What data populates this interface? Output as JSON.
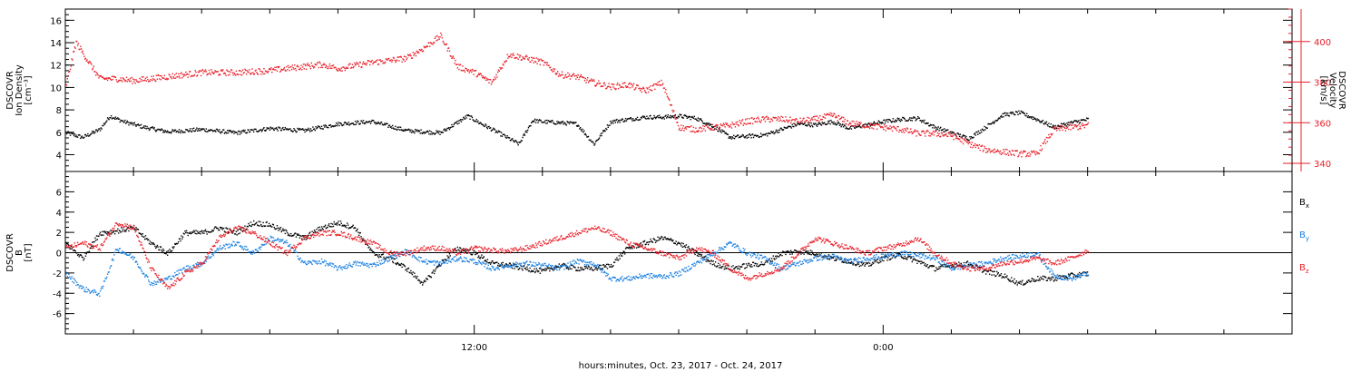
{
  "footer_label": "hours:minutes, Oct. 23, 2017 - Oct. 24, 2017",
  "time_ticks": [
    "12:00",
    "0:00"
  ],
  "colors": {
    "axis": "#000000",
    "red": "#e8202a",
    "blue": "#1a80e0",
    "black": "#000000"
  },
  "chart_data": [
    {
      "type": "scatter",
      "panel": "top",
      "ylabel_lines": [
        "DSCOVR",
        "Ion Density",
        "[cm⁻³]"
      ],
      "y2label_lines": [
        "DSCOVR",
        "Velocity",
        "[km/s]"
      ],
      "ylim": [
        2.5,
        17
      ],
      "yticks": [
        "4",
        "6",
        "8",
        "10",
        "12",
        "14",
        "16"
      ],
      "y2lim": [
        336,
        416
      ],
      "y2ticks": [
        "340",
        "360",
        "380",
        "400"
      ],
      "xlim_hours": [
        0,
        36
      ],
      "x_tick_hours": [
        12,
        24
      ],
      "series": [
        {
          "axis": "left",
          "color": "black",
          "x": [
            0,
            0.5,
            1,
            1.3,
            1.7,
            2.3,
            3,
            4,
            5,
            6,
            7,
            8,
            9,
            10,
            11,
            11.8,
            12.2,
            12.7,
            13.3,
            13.7,
            14,
            14.5,
            15,
            15.5,
            16,
            16.5,
            17,
            17.5,
            18,
            18.5,
            19,
            19.5,
            20,
            20.5,
            21,
            21.5,
            22,
            22.5,
            23,
            23.5,
            24,
            24.5,
            25,
            25.5,
            26,
            26.5,
            27,
            27.5,
            28,
            28.5,
            29,
            29.5,
            30
          ],
          "y": [
            6.0,
            5.6,
            6.3,
            7.5,
            7.0,
            6.5,
            6.1,
            6.3,
            6.0,
            6.4,
            6.2,
            6.8,
            7.0,
            6.2,
            6.0,
            7.5,
            6.8,
            6.0,
            5.0,
            7.1,
            7.0,
            6.9,
            6.8,
            5.0,
            7.0,
            7.2,
            7.4,
            7.4,
            7.5,
            7.3,
            6.6,
            5.6,
            5.7,
            5.8,
            6.3,
            6.8,
            6.7,
            7.0,
            6.4,
            6.7,
            7.0,
            7.2,
            7.3,
            6.5,
            6.0,
            5.5,
            6.5,
            7.6,
            7.8,
            7.2,
            6.5,
            6.9,
            7.2
          ]
        },
        {
          "axis": "right",
          "color": "red",
          "x": [
            0,
            0.3,
            0.6,
            1,
            1.5,
            2,
            3,
            4,
            5,
            6,
            7,
            7.5,
            8,
            9,
            10,
            10.5,
            11,
            11.5,
            12,
            12.5,
            13,
            13.5,
            14,
            14.5,
            15,
            15.5,
            16,
            16.5,
            17,
            17.5,
            18,
            18.5,
            19,
            19.5,
            20,
            20.5,
            21,
            21.5,
            22,
            22.5,
            23,
            23.5,
            24,
            24.5,
            25,
            25.5,
            26,
            26.5,
            27,
            27.5,
            28,
            28.5,
            29,
            29.5,
            30
          ],
          "y": [
            378,
            400,
            392,
            382,
            382,
            381,
            383,
            385,
            385,
            386,
            388,
            389,
            387,
            390,
            392,
            397,
            403,
            388,
            385,
            380,
            394,
            392,
            390,
            384,
            383,
            380,
            378,
            379,
            376,
            380,
            358,
            357,
            358,
            359,
            361,
            362,
            362,
            361,
            362,
            364,
            360,
            359,
            358,
            357,
            355,
            355,
            354,
            350,
            347,
            346,
            345,
            345,
            357,
            358,
            359
          ]
        }
      ]
    },
    {
      "type": "scatter",
      "panel": "bottom",
      "ylabel_lines": [
        "DSCOVR",
        "B",
        "[nT]"
      ],
      "ylim": [
        -8,
        8
      ],
      "yticks": [
        "-6",
        "-4",
        "-2",
        "0",
        "2",
        "4",
        "6"
      ],
      "xlim_hours": [
        0,
        36
      ],
      "x_tick_hours": [
        12,
        24
      ],
      "legend": [
        "Bx",
        "By",
        "Bz"
      ],
      "series": [
        {
          "name": "Bx",
          "color": "black",
          "x": [
            0,
            0.5,
            1,
            1.5,
            2,
            2.5,
            3,
            3.5,
            4,
            4.5,
            5,
            5.5,
            6,
            6.5,
            7,
            7.5,
            8,
            8.5,
            9,
            9.5,
            10,
            10.5,
            11,
            11.5,
            12,
            12.5,
            13,
            13.5,
            14,
            14.5,
            15,
            15.5,
            16,
            16.5,
            17,
            17.5,
            18,
            18.5,
            19,
            19.5,
            20,
            20.5,
            21,
            21.5,
            22,
            22.5,
            23,
            23.5,
            24,
            24.5,
            25,
            25.5,
            26,
            26.5,
            27,
            27.5,
            28,
            28.5,
            29,
            29.5,
            30
          ],
          "y": [
            1.0,
            -0.5,
            2.0,
            2.2,
            2.5,
            1.0,
            0.0,
            2.0,
            2.0,
            2.5,
            2.0,
            3.0,
            2.8,
            2.0,
            1.5,
            2.5,
            3.0,
            2.5,
            0.0,
            -0.5,
            -1.5,
            -3.0,
            -1.0,
            0.5,
            0.0,
            -1.0,
            -1.2,
            -1.5,
            -1.8,
            -1.2,
            -1.5,
            -1.5,
            -1.2,
            0.5,
            1.0,
            1.5,
            1.0,
            0.0,
            -1.0,
            -1.5,
            -1.2,
            -1.0,
            0.0,
            0.2,
            0.0,
            -0.5,
            -0.8,
            -1.2,
            -0.5,
            -0.2,
            -0.8,
            -1.5,
            -1.2,
            -1.0,
            -1.8,
            -2.2,
            -3.0,
            -2.5,
            -2.5,
            -2.2,
            -2.0
          ]
        },
        {
          "name": "By",
          "color": "blue",
          "x": [
            0,
            0.5,
            1,
            1.5,
            2,
            2.5,
            3,
            3.5,
            4,
            4.5,
            5,
            5.5,
            6,
            6.5,
            7,
            7.5,
            8,
            8.5,
            9,
            9.5,
            10,
            10.5,
            11,
            11.5,
            12,
            12.5,
            13,
            13.5,
            14,
            14.5,
            15,
            15.5,
            16,
            16.5,
            17,
            17.5,
            18,
            18.5,
            19,
            19.5,
            20,
            20.5,
            21,
            21.5,
            22,
            22.5,
            23,
            23.5,
            24,
            24.5,
            25,
            25.5,
            26,
            26.5,
            27,
            27.5,
            28,
            28.5,
            29,
            29.5,
            30
          ],
          "y": [
            -2.0,
            -3.5,
            -4.0,
            0.5,
            -0.5,
            -3.0,
            -2.5,
            -1.5,
            -1.0,
            0.5,
            1.0,
            0.0,
            1.5,
            1.0,
            -1.0,
            -0.8,
            -1.5,
            -1.0,
            -1.2,
            -0.5,
            0.2,
            -0.8,
            -1.0,
            -0.5,
            -0.8,
            -1.5,
            -1.2,
            -1.0,
            -1.2,
            -1.5,
            -0.8,
            -1.0,
            -2.5,
            -2.5,
            -2.2,
            -2.3,
            -2.0,
            -1.0,
            0.0,
            1.0,
            0.0,
            -0.5,
            -1.5,
            -1.0,
            -0.5,
            -0.3,
            -0.8,
            -0.5,
            -0.3,
            0.0,
            -0.2,
            -0.5,
            -1.5,
            -1.2,
            -1.0,
            -0.5,
            -0.3,
            0.0,
            -2.2,
            -2.5,
            -2.0
          ]
        },
        {
          "name": "Bz",
          "color": "red",
          "x": [
            0,
            0.5,
            1,
            1.5,
            2,
            2.5,
            3,
            3.5,
            4,
            4.5,
            5,
            5.5,
            6,
            6.5,
            7,
            7.5,
            8,
            8.5,
            9,
            9.5,
            10,
            10.5,
            11,
            11.5,
            12,
            12.5,
            13,
            13.5,
            14,
            14.5,
            15,
            15.5,
            16,
            16.5,
            17,
            17.5,
            18,
            18.5,
            19,
            19.5,
            20,
            20.5,
            21,
            21.5,
            22,
            22.5,
            23,
            23.5,
            24,
            24.5,
            25,
            25.5,
            26,
            26.5,
            27,
            27.5,
            28,
            28.5,
            29,
            29.5,
            30
          ],
          "y": [
            0.5,
            1.0,
            0.5,
            3.0,
            2.5,
            -1.5,
            -3.5,
            -2.0,
            -1.0,
            1.5,
            2.5,
            2.0,
            1.0,
            0.0,
            1.5,
            2.0,
            2.0,
            1.5,
            1.0,
            0.0,
            0.0,
            0.5,
            0.5,
            0.0,
            0.5,
            0.3,
            0.2,
            0.5,
            1.0,
            1.5,
            2.0,
            2.5,
            2.0,
            1.0,
            0.5,
            0.0,
            -0.5,
            0.5,
            0.0,
            -1.5,
            -2.5,
            -2.0,
            -1.5,
            0.0,
            1.5,
            1.0,
            0.5,
            0.0,
            0.5,
            0.8,
            1.5,
            0.0,
            -1.0,
            -1.5,
            -1.5,
            -1.0,
            -0.8,
            -0.5,
            -1.0,
            -0.5,
            0.3
          ]
        }
      ]
    }
  ]
}
